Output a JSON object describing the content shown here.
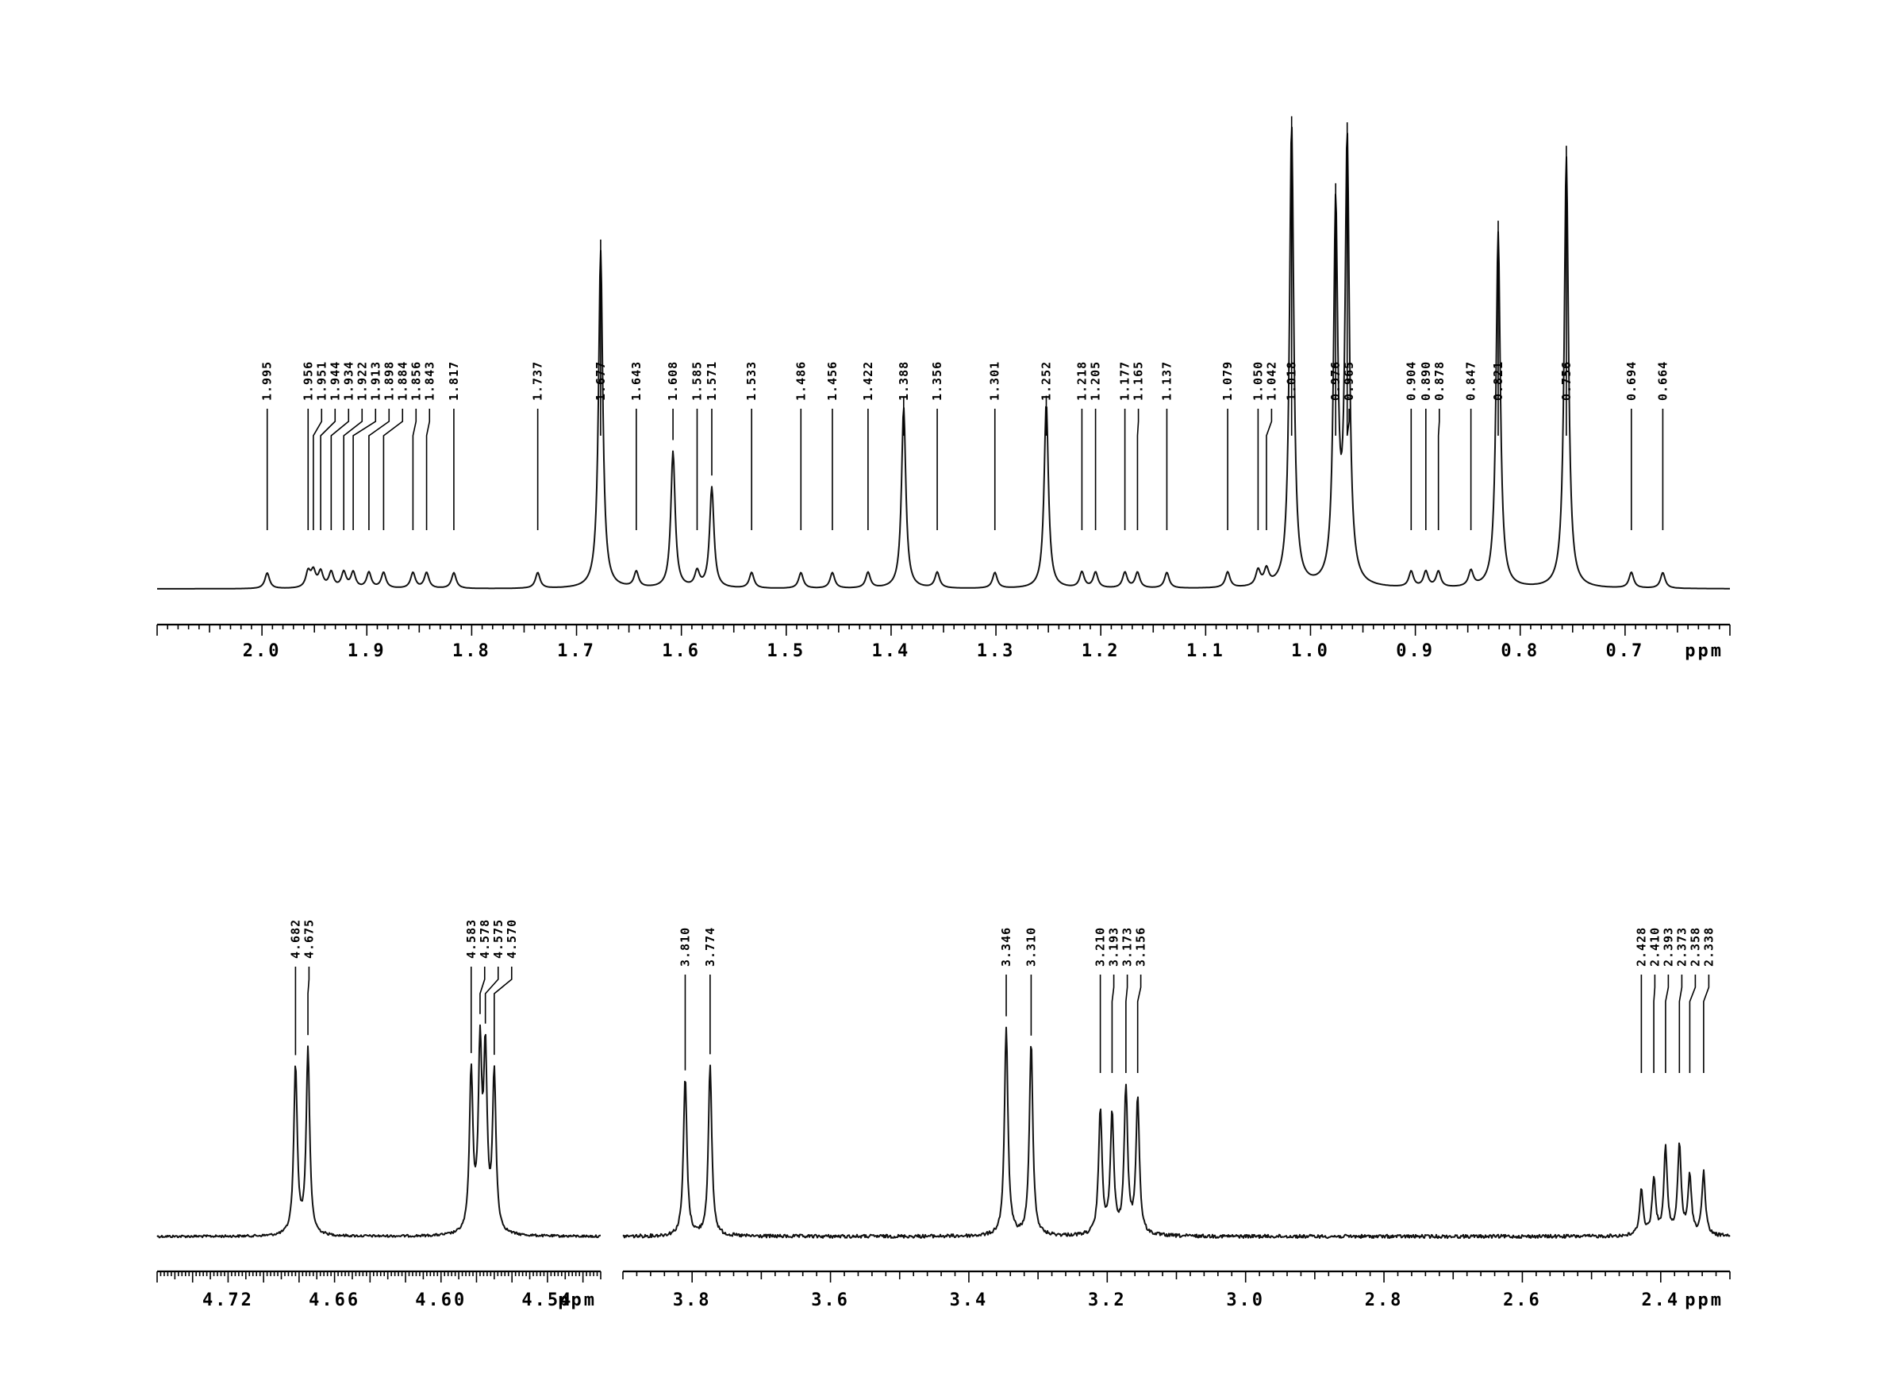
{
  "chart_data": [
    {
      "type": "line",
      "panel": "top",
      "xlabel": "ppm",
      "xlim": [
        2.1,
        0.6
      ],
      "x_reversed": true,
      "x_ticks": [
        "2.0",
        "1.9",
        "1.8",
        "1.7",
        "1.6",
        "1.5",
        "1.4",
        "1.3",
        "1.2",
        "1.1",
        "1.0",
        "0.9",
        "0.8",
        "0.7"
      ],
      "peak_labels": [
        "1.995",
        "1.956",
        "1.951",
        "1.944",
        "1.934",
        "1.922",
        "1.913",
        "1.898",
        "1.884",
        "1.856",
        "1.843",
        "1.817",
        "1.737",
        "1.677",
        "1.643",
        "1.608",
        "1.585",
        "1.571",
        "1.533",
        "1.486",
        "1.456",
        "1.422",
        "1.388",
        "1.356",
        "1.301",
        "1.252",
        "1.218",
        "1.205",
        "1.177",
        "1.165",
        "1.137",
        "1.079",
        "1.050",
        "1.042",
        "1.018",
        "0.976",
        "0.965",
        "0.904",
        "0.890",
        "0.878",
        "0.847",
        "0.821",
        "0.756",
        "0.694",
        "0.664"
      ],
      "peaks": [
        {
          "ppm": 1.018,
          "height": 1.0
        },
        {
          "ppm": 0.965,
          "height": 0.95
        },
        {
          "ppm": 0.976,
          "height": 0.8
        },
        {
          "ppm": 0.756,
          "height": 0.93
        },
        {
          "ppm": 0.821,
          "height": 0.76
        },
        {
          "ppm": 1.677,
          "height": 0.72
        },
        {
          "ppm": 1.388,
          "height": 0.37
        },
        {
          "ppm": 1.252,
          "height": 0.38
        },
        {
          "ppm": 1.608,
          "height": 0.27
        },
        {
          "ppm": 1.571,
          "height": 0.19
        }
      ]
    },
    {
      "type": "line",
      "panel": "bottom-left",
      "xlabel": "ppm",
      "xlim": [
        4.76,
        4.51
      ],
      "x_reversed": true,
      "x_ticks": [
        "4.72",
        "4.66",
        "4.60",
        "4.54"
      ],
      "peak_labels": [
        "4.682",
        "4.675",
        "4.583",
        "4.578",
        "4.575",
        "4.570"
      ],
      "peaks": [
        {
          "ppm": 4.675,
          "height": 0.81
        },
        {
          "ppm": 4.682,
          "height": 0.74
        },
        {
          "ppm": 4.578,
          "height": 0.78
        },
        {
          "ppm": 4.575,
          "height": 0.75
        },
        {
          "ppm": 4.583,
          "height": 0.7
        },
        {
          "ppm": 4.57,
          "height": 0.69
        }
      ]
    },
    {
      "type": "line",
      "panel": "bottom-right",
      "xlabel": "ppm",
      "xlim": [
        3.9,
        2.3
      ],
      "x_reversed": true,
      "x_ticks": [
        "3.8",
        "3.6",
        "3.4",
        "3.2",
        "3.0",
        "2.8",
        "2.6",
        "2.4"
      ],
      "peak_labels": [
        "3.810",
        "3.774",
        "3.346",
        "3.310",
        "3.210",
        "3.193",
        "3.173",
        "3.156",
        "2.428",
        "2.410",
        "2.393",
        "2.373",
        "2.358",
        "2.338"
      ],
      "peaks": [
        {
          "ppm": 3.81,
          "height": 0.76
        },
        {
          "ppm": 3.774,
          "height": 0.81
        },
        {
          "ppm": 3.346,
          "height": 1.0
        },
        {
          "ppm": 3.31,
          "height": 0.93
        },
        {
          "ppm": 3.21,
          "height": 0.6
        },
        {
          "ppm": 3.193,
          "height": 0.57
        },
        {
          "ppm": 3.173,
          "height": 0.7
        },
        {
          "ppm": 3.156,
          "height": 0.65
        },
        {
          "ppm": 2.428,
          "height": 0.22
        },
        {
          "ppm": 2.41,
          "height": 0.27
        },
        {
          "ppm": 2.393,
          "height": 0.41
        },
        {
          "ppm": 2.373,
          "height": 0.43
        },
        {
          "ppm": 2.358,
          "height": 0.28
        },
        {
          "ppm": 2.338,
          "height": 0.3
        }
      ]
    }
  ]
}
